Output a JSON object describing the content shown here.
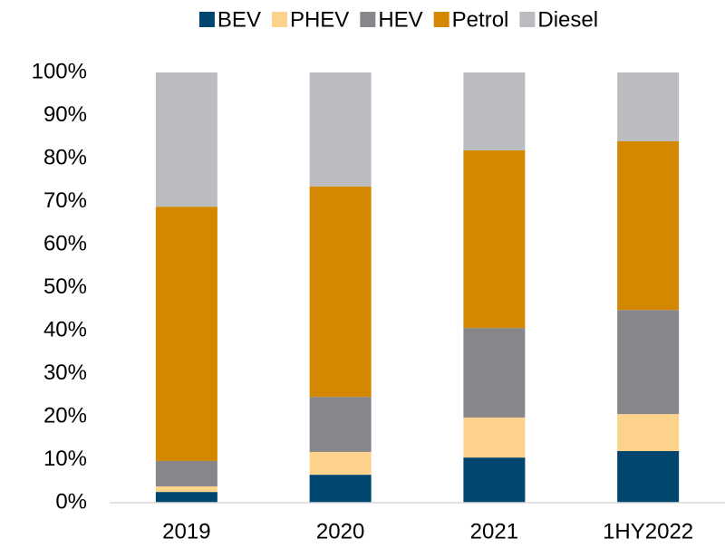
{
  "chart_data": {
    "type": "stacked_bar",
    "categories": [
      "2019",
      "2020",
      "2021",
      "1HY2022"
    ],
    "series": [
      {
        "name": "BEV",
        "color": "#00466f",
        "values": [
          2.5,
          6.5,
          10.5,
          12.0
        ]
      },
      {
        "name": "PHEV",
        "color": "#fdd28a",
        "values": [
          1.3,
          5.3,
          9.3,
          8.6
        ]
      },
      {
        "name": "HEV",
        "color": "#87868b",
        "values": [
          5.9,
          12.8,
          20.8,
          24.2
        ]
      },
      {
        "name": "Petrol",
        "color": "#d38800",
        "values": [
          59.1,
          48.9,
          41.3,
          39.2
        ]
      },
      {
        "name": "Diesel",
        "color": "#bbbcc0",
        "values": [
          31.2,
          26.5,
          18.1,
          16.0
        ]
      }
    ],
    "ylim": [
      0,
      100
    ],
    "yticks": [
      {
        "value": 0,
        "label": "0%"
      },
      {
        "value": 10,
        "label": "10%"
      },
      {
        "value": 20,
        "label": "20%"
      },
      {
        "value": 30,
        "label": "30%"
      },
      {
        "value": 40,
        "label": "40%"
      },
      {
        "value": 50,
        "label": "50%"
      },
      {
        "value": 60,
        "label": "60%"
      },
      {
        "value": 70,
        "label": "70%"
      },
      {
        "value": 80,
        "label": "80%"
      },
      {
        "value": 90,
        "label": "90%"
      },
      {
        "value": 100,
        "label": "100%"
      }
    ],
    "legend": "top"
  }
}
